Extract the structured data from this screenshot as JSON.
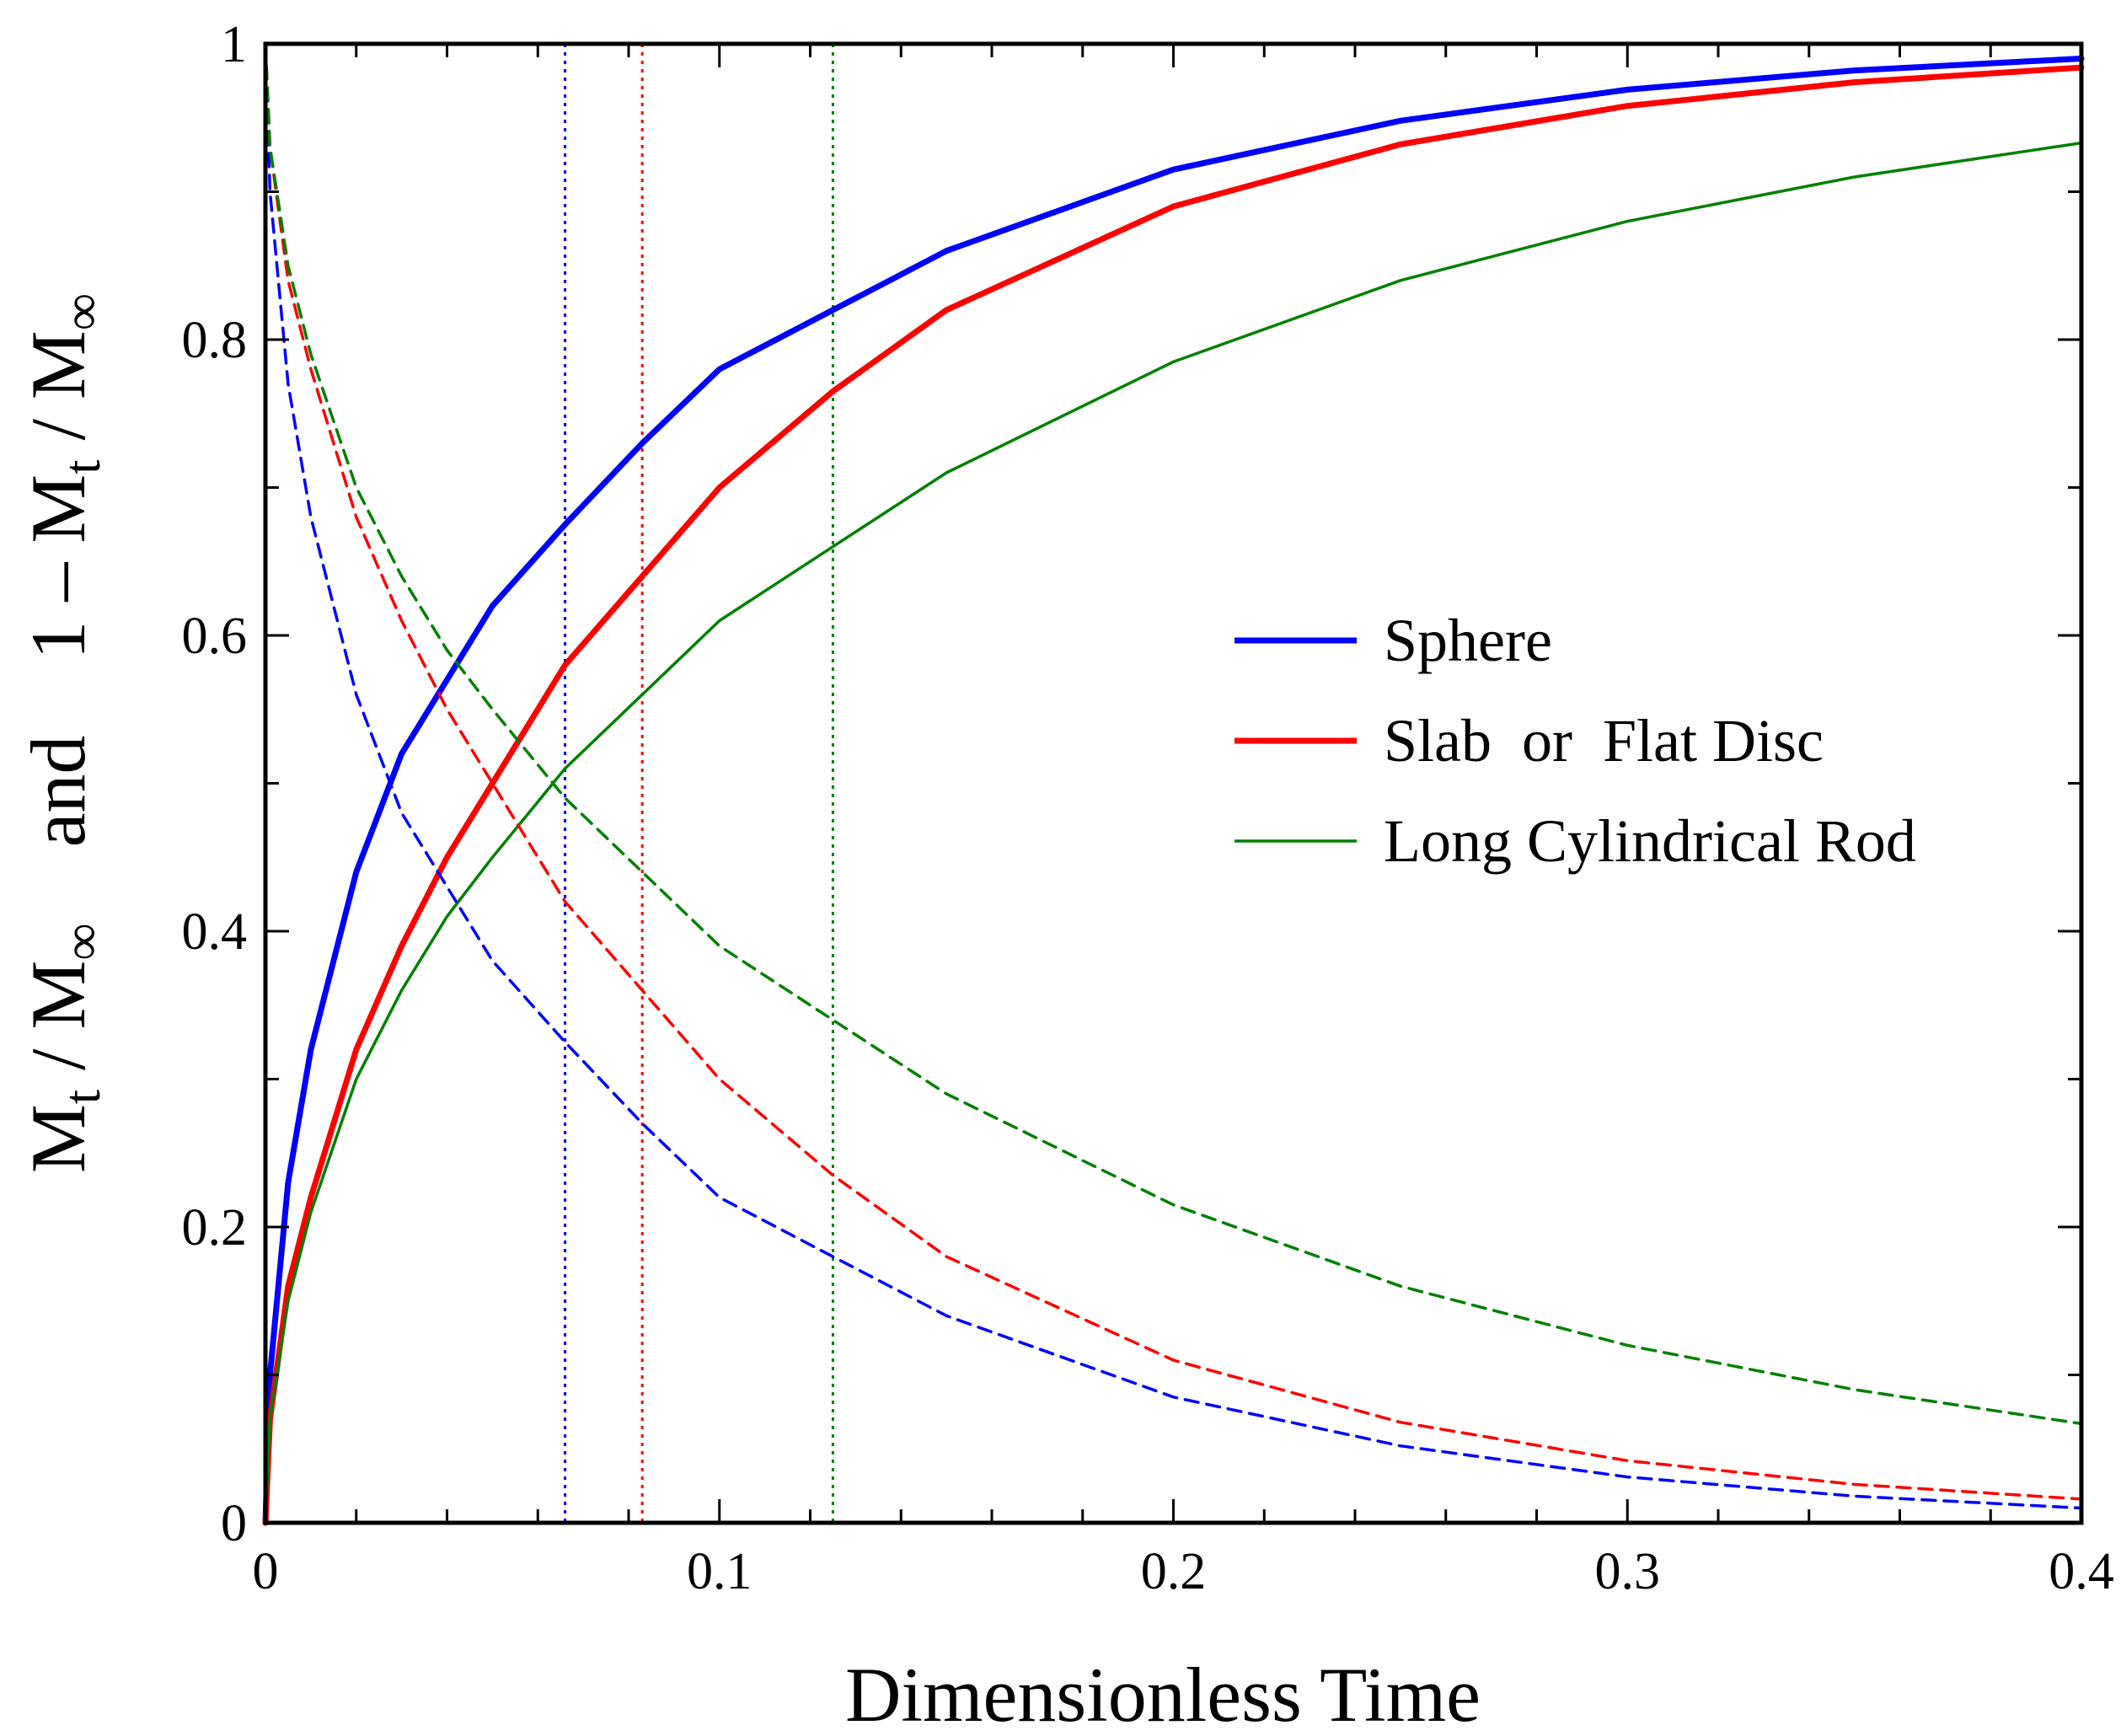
{
  "chart_data": {
    "type": "line",
    "title": "",
    "xlabel": "Dimensionless  Time",
    "ylabel": {
      "part1_main": "M",
      "part1_sub": "t",
      "part1_sep": " / M",
      "part1_sub2": "∞",
      "joiner": "and",
      "part2_prefix": "1 – M",
      "part2_sub": "t",
      "part2_sep": " / M",
      "part2_sub2": "∞"
    },
    "xlim": [
      0,
      0.4
    ],
    "ylim": [
      0,
      1
    ],
    "x_ticks": [
      {
        "value": 0,
        "label": "0"
      },
      {
        "value": 0.1,
        "label": "0.1"
      },
      {
        "value": 0.2,
        "label": "0.2"
      },
      {
        "value": 0.3,
        "label": "0.3"
      },
      {
        "value": 0.4,
        "label": "0.4"
      }
    ],
    "y_ticks": [
      {
        "value": 0,
        "label": "0"
      },
      {
        "value": 0.2,
        "label": "0.2"
      },
      {
        "value": 0.4,
        "label": "0.4"
      },
      {
        "value": 0.6,
        "label": "0.6"
      },
      {
        "value": 0.8,
        "label": "0.8"
      },
      {
        "value": 1,
        "label": "1"
      }
    ],
    "legend_position": "center-right",
    "series": [
      {
        "name": "Sphere",
        "color": "#0000ff",
        "style": "solid-thick",
        "x": [
          0,
          0.001,
          0.005,
          0.01,
          0.02,
          0.03,
          0.04,
          0.05,
          0.066,
          0.083,
          0.1,
          0.125,
          0.15,
          0.2,
          0.25,
          0.3,
          0.35,
          0.4
        ],
        "y": [
          0,
          0.1,
          0.23,
          0.32,
          0.44,
          0.52,
          0.57,
          0.62,
          0.675,
          0.73,
          0.78,
          0.82,
          0.86,
          0.915,
          0.948,
          0.969,
          0.982,
          0.99
        ]
      },
      {
        "name": "Slab  or  Flat Disc",
        "color": "#ff0000",
        "style": "solid-thick",
        "x": [
          0,
          0.001,
          0.005,
          0.01,
          0.02,
          0.03,
          0.04,
          0.05,
          0.066,
          0.083,
          0.1,
          0.125,
          0.15,
          0.2,
          0.25,
          0.3,
          0.35,
          0.4
        ],
        "y": [
          0,
          0.07,
          0.16,
          0.22,
          0.32,
          0.39,
          0.45,
          0.5,
          0.58,
          0.64,
          0.7,
          0.765,
          0.82,
          0.89,
          0.932,
          0.958,
          0.974,
          0.984
        ]
      },
      {
        "name": "Long Cylindrical Rod",
        "color": "#008000",
        "style": "solid-thin",
        "x": [
          0,
          0.001,
          0.005,
          0.01,
          0.02,
          0.03,
          0.04,
          0.05,
          0.066,
          0.083,
          0.1,
          0.125,
          0.15,
          0.2,
          0.25,
          0.3,
          0.35,
          0.4
        ],
        "y": [
          0,
          0.07,
          0.15,
          0.21,
          0.3,
          0.36,
          0.41,
          0.45,
          0.51,
          0.56,
          0.61,
          0.66,
          0.71,
          0.785,
          0.84,
          0.88,
          0.91,
          0.933
        ]
      },
      {
        "name": "1 - Sphere",
        "color": "#0000ff",
        "style": "dashed",
        "x": [
          0,
          0.001,
          0.005,
          0.01,
          0.02,
          0.03,
          0.04,
          0.05,
          0.066,
          0.083,
          0.1,
          0.125,
          0.15,
          0.2,
          0.25,
          0.3,
          0.35,
          0.4
        ],
        "y": [
          1,
          0.9,
          0.77,
          0.68,
          0.56,
          0.48,
          0.43,
          0.38,
          0.325,
          0.27,
          0.22,
          0.18,
          0.14,
          0.085,
          0.052,
          0.031,
          0.018,
          0.01
        ]
      },
      {
        "name": "1 - Slab",
        "color": "#ff0000",
        "style": "dashed",
        "x": [
          0,
          0.001,
          0.005,
          0.01,
          0.02,
          0.03,
          0.04,
          0.05,
          0.066,
          0.083,
          0.1,
          0.125,
          0.15,
          0.2,
          0.25,
          0.3,
          0.35,
          0.4
        ],
        "y": [
          1,
          0.93,
          0.84,
          0.78,
          0.68,
          0.61,
          0.55,
          0.5,
          0.42,
          0.36,
          0.3,
          0.235,
          0.18,
          0.11,
          0.068,
          0.042,
          0.026,
          0.016
        ]
      },
      {
        "name": "1 - Long Cylindrical Rod",
        "color": "#008000",
        "style": "dashed",
        "x": [
          0,
          0.001,
          0.005,
          0.01,
          0.02,
          0.03,
          0.04,
          0.05,
          0.066,
          0.083,
          0.1,
          0.125,
          0.15,
          0.2,
          0.25,
          0.3,
          0.35,
          0.4
        ],
        "y": [
          1,
          0.93,
          0.85,
          0.79,
          0.7,
          0.64,
          0.59,
          0.55,
          0.49,
          0.44,
          0.39,
          0.34,
          0.29,
          0.215,
          0.16,
          0.12,
          0.09,
          0.067
        ]
      }
    ],
    "vertical_markers": [
      {
        "x": 0.066,
        "color": "#0000ff",
        "style": "dotted"
      },
      {
        "x": 0.083,
        "color": "#ff0000",
        "style": "dotted"
      },
      {
        "x": 0.125,
        "color": "#008000",
        "style": "dotted"
      }
    ],
    "legend": [
      {
        "label": "Sphere",
        "color": "#0000ff",
        "style": "solid-thick"
      },
      {
        "label": "Slab  or  Flat Disc",
        "color": "#ff0000",
        "style": "solid-thick"
      },
      {
        "label": "Long Cylindrical Rod",
        "color": "#008000",
        "style": "solid-thin"
      }
    ]
  }
}
